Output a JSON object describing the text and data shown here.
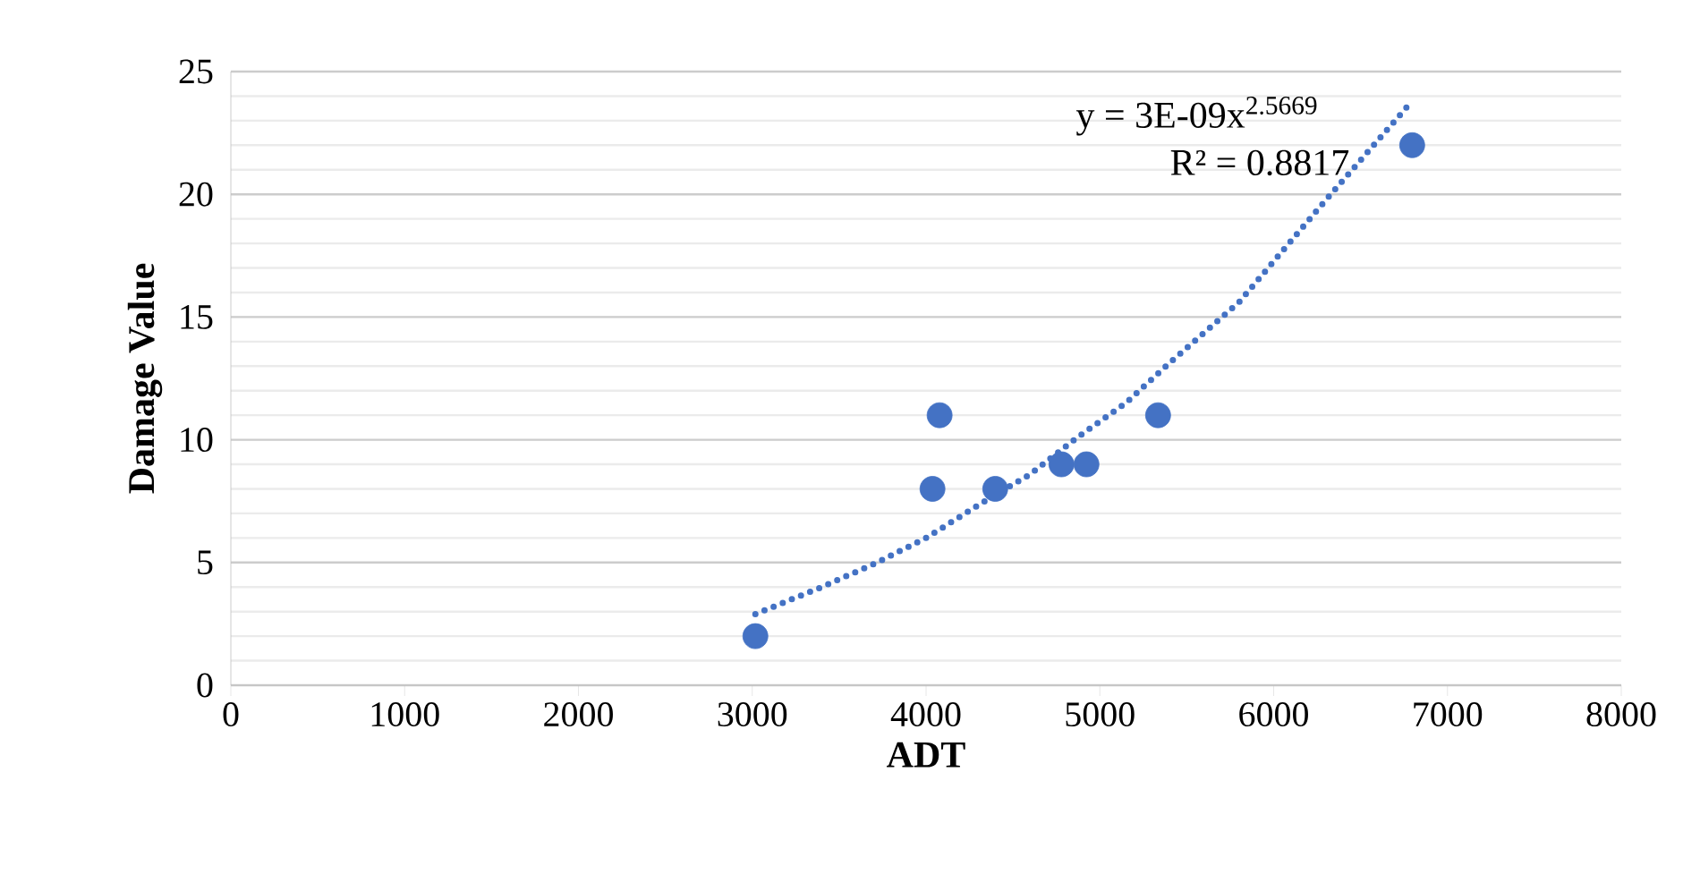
{
  "chart_data": {
    "type": "scatter",
    "xlabel": "ADT",
    "ylabel": "Damage Value",
    "xlim": [
      0,
      8000
    ],
    "ylim": [
      0,
      25
    ],
    "xticks": [
      0,
      1000,
      2000,
      3000,
      4000,
      5000,
      6000,
      7000,
      8000
    ],
    "yticks": [
      0,
      5,
      10,
      15,
      20,
      25
    ],
    "grid": "y",
    "series": [
      {
        "marker": "circle",
        "color": "#4472c4",
        "x": [
          3018,
          4037,
          4078,
          4398,
          4779,
          4923,
          5335,
          6797
        ],
        "values": [
          2,
          8,
          11,
          8,
          9,
          9,
          11,
          22
        ]
      },
      {
        "type": "line",
        "line_style": "dotted",
        "marker": "none",
        "color": "#4472c4",
        "x": [
          3018,
          3400,
          3718,
          4000,
          4315,
          4600,
          4871,
          5150,
          5396,
          5800,
          6292,
          6797
        ],
        "values": [
          2.9,
          4.0,
          5.0,
          6.0,
          7.4,
          8.6,
          10.1,
          11.5,
          13.1,
          15.6,
          19.7,
          23.8
        ]
      }
    ],
    "annotations": [
      "y = 3E-09x$^{2.5669}$",
      "R² = 0.8817"
    ]
  }
}
